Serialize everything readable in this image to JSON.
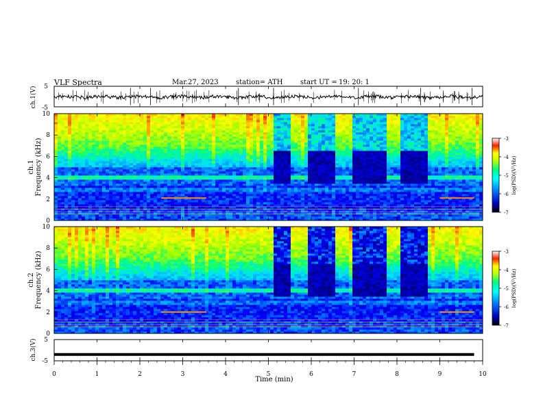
{
  "header": {
    "title": "VLF Spectra",
    "date": "Mar.27, 2023",
    "station": "station= ATH",
    "start_label": "start  UT  =",
    "start_time": "19: 20: 1"
  },
  "colors": {
    "colormap": [
      "#000000",
      "#0000a0",
      "#0000ff",
      "#0090ff",
      "#00e0ff",
      "#00ff80",
      "#a0ff00",
      "#ffff00",
      "#ffa000",
      "#ff0000",
      "#ffffff"
    ],
    "trace": "#000000"
  },
  "chart_data": [
    {
      "type": "line",
      "ylabel": "ch.1(V)",
      "ylim": [
        -5,
        5
      ],
      "yticks": [
        "5",
        "-5"
      ],
      "xlim": [
        0,
        10
      ],
      "baseline": -0.2,
      "spike_times_min": [
        1.78,
        2.25,
        4.3,
        5.12,
        7.1,
        8.55,
        9.75
      ]
    },
    {
      "type": "heatmap",
      "ylabel": "Frequency (kHz)",
      "channel_label": "ch.1",
      "ylim": [
        0,
        10
      ],
      "yticks": [
        "0",
        "2",
        "4",
        "6",
        "8",
        "10"
      ],
      "colorbar": {
        "label": "log(PSD)(V²/Hz)",
        "ticks": [
          "-3",
          "-4",
          "-5",
          "-6",
          "-7"
        ],
        "range": [
          -7,
          -3
        ]
      },
      "dark_segments_min": [
        [
          5.1,
          5.55
        ],
        [
          5.9,
          6.6
        ],
        [
          6.95,
          7.75
        ],
        [
          8.1,
          8.75
        ]
      ],
      "bright_bands_khz": [
        4.0,
        2.1
      ]
    },
    {
      "type": "heatmap",
      "ylabel": "Frequency (kHz)",
      "channel_label": "ch.2",
      "ylim": [
        0,
        10
      ],
      "yticks": [
        "0",
        "2",
        "4",
        "6",
        "8",
        "10"
      ],
      "colorbar": {
        "label": "log(PSD)(V²/Hz)",
        "ticks": [
          "-3",
          "-4",
          "-5",
          "-6",
          "-7"
        ],
        "range": [
          -7,
          -3
        ]
      },
      "dark_segments_min": [
        [
          5.1,
          5.55
        ],
        [
          5.9,
          6.6
        ],
        [
          6.95,
          7.75
        ],
        [
          8.1,
          8.75
        ]
      ],
      "bright_bands_khz": [
        4.0,
        2.0
      ]
    },
    {
      "type": "line",
      "ylabel": "ch.3(V)",
      "ylim": [
        -5,
        5
      ],
      "yticks": [
        "5",
        "-5"
      ],
      "xlim": [
        0,
        10
      ],
      "baseline": -2.0
    }
  ],
  "x_axis": {
    "label": "Time (min)",
    "ticks": [
      "0",
      "1",
      "2",
      "3",
      "4",
      "5",
      "6",
      "7",
      "8",
      "9",
      "10"
    ],
    "range": [
      0,
      10
    ]
  }
}
